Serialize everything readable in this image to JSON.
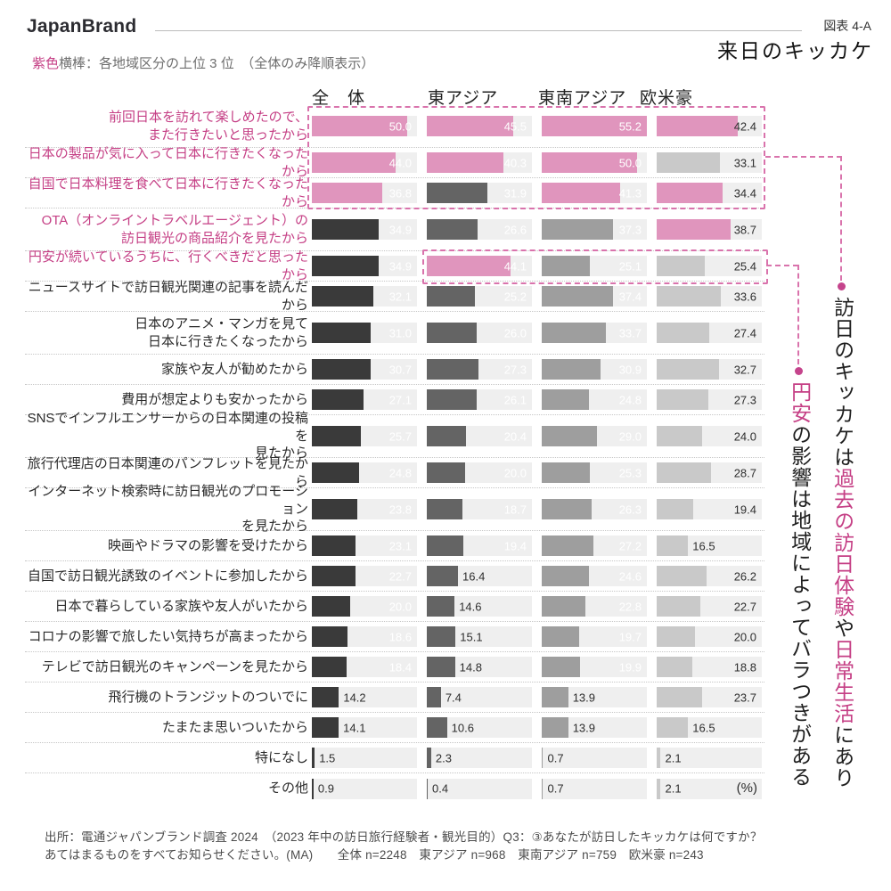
{
  "header": {
    "brand": "JapanBrand",
    "figure_label": "図表 4-A",
    "title": "来日のキッカケ",
    "legend_pink": "紫色",
    "legend_rest": "横棒：各地域区分の上位 3 位　（全体のみ降順表示）"
  },
  "columns": [
    "全　体",
    "東アジア",
    "東南アジア",
    "欧米豪"
  ],
  "percent_label": "(%)",
  "chart_data": {
    "type": "bar",
    "orientation": "horizontal",
    "value_unit": "%",
    "xlim": [
      0,
      55.2
    ],
    "inside_label_min": 17,
    "highlight_color": "#e095bd",
    "highlight_note": "紫色横棒＝各地域区分の上位3位",
    "pink_category_indices": [
      0,
      1,
      2,
      3,
      4
    ],
    "categories": [
      "前回日本を訪れて楽しめたので、\nまた行きたいと思ったから",
      "日本の製品が気に入って日本に行きたくなったから",
      "自国で日本料理を食べて日本に行きたくなったから",
      "OTA（オンライントラベルエージェント）の\n訪日観光の商品紹介を見たから",
      "円安が続いているうちに、行くべきだと思ったから",
      "ニュースサイトで訪日観光関連の記事を読んだから",
      "日本のアニメ・マンガを見て\n日本に行きたくなったから",
      "家族や友人が勧めたから",
      "費用が想定よりも安かったから",
      "SNSでインフルエンサーからの日本関連の投稿を\n見たから",
      "旅行代理店の日本関連のパンフレットを見たから",
      "インターネット検索時に訪日観光のプロモーション\nを見たから",
      "映画やドラマの影響を受けたから",
      "自国で訪日観光誘致のイベントに参加したから",
      "日本で暮らしている家族や友人がいたから",
      "コロナの影響で旅したい気持ちが高まったから",
      "テレビで訪日観光のキャンペーンを見たから",
      "飛行機のトランジットのついでに",
      "たまたま思いついたから",
      "特になし",
      "その他"
    ],
    "series": [
      {
        "name": "全体",
        "key": "total",
        "n": 2248,
        "color": "#3a3a3a",
        "value_color_inside": "#ffffff",
        "top3_indices": [
          0,
          1,
          2
        ],
        "values": [
          50.0,
          44.0,
          36.8,
          34.9,
          34.9,
          32.1,
          31.0,
          30.7,
          27.1,
          25.7,
          24.8,
          23.8,
          23.1,
          22.7,
          20.0,
          18.6,
          18.4,
          14.2,
          14.1,
          1.5,
          0.9
        ]
      },
      {
        "name": "東アジア",
        "key": "east-asia",
        "n": 968,
        "color": "#646464",
        "value_color_inside": "#ffffff",
        "top3_indices": [
          0,
          1,
          4
        ],
        "values": [
          45.5,
          40.3,
          31.9,
          26.6,
          44.1,
          25.2,
          26.0,
          27.3,
          26.1,
          20.4,
          20.0,
          18.7,
          19.4,
          16.4,
          14.6,
          15.1,
          14.8,
          7.4,
          10.6,
          2.3,
          0.4
        ]
      },
      {
        "name": "東南アジア",
        "key": "southeast-asia",
        "n": 759,
        "color": "#9e9e9e",
        "value_color_inside": "#ffffff",
        "top3_indices": [
          0,
          1,
          2
        ],
        "values": [
          55.2,
          50.0,
          41.3,
          37.3,
          25.1,
          37.4,
          33.7,
          30.9,
          24.8,
          29.0,
          25.3,
          26.3,
          27.2,
          24.6,
          22.8,
          19.7,
          19.9,
          13.9,
          13.9,
          0.7,
          0.7
        ]
      },
      {
        "name": "欧米豪",
        "key": "west",
        "n": 243,
        "color": "#c9c9c9",
        "value_color_inside": "#2e2e2e",
        "top3_indices": [
          0,
          2,
          3
        ],
        "values": [
          42.4,
          33.1,
          34.4,
          38.7,
          25.4,
          33.6,
          27.4,
          32.7,
          27.3,
          24.0,
          28.7,
          19.4,
          16.5,
          26.2,
          22.7,
          20.0,
          18.8,
          23.7,
          16.5,
          2.1,
          2.1
        ]
      }
    ]
  },
  "annotations": {
    "main": {
      "segments": [
        {
          "text": "訪日のキッカケは",
          "pink": false
        },
        {
          "text": "過去の訪日体験",
          "pink": true
        },
        {
          "text": "や",
          "pink": false
        },
        {
          "text": "日常生活",
          "pink": true
        },
        {
          "text": "にあり",
          "pink": false
        }
      ]
    },
    "yen": {
      "segments": [
        {
          "text": "円安",
          "pink": true
        },
        {
          "text": "の影響は地域によってバラつきがある",
          "pink": false
        }
      ]
    }
  },
  "footer": {
    "line1": "出所：電通ジャパンブランド調査 2024　（2023 年中の訪日旅行経験者・観光目的）Q3：③あなたが訪日したキッカケは何ですか？",
    "line2": "あてはまるものをすべてお知らせください。(MA)　　全体 n=2248　東アジア n=968　東南アジア n=759　欧米豪 n=243"
  }
}
